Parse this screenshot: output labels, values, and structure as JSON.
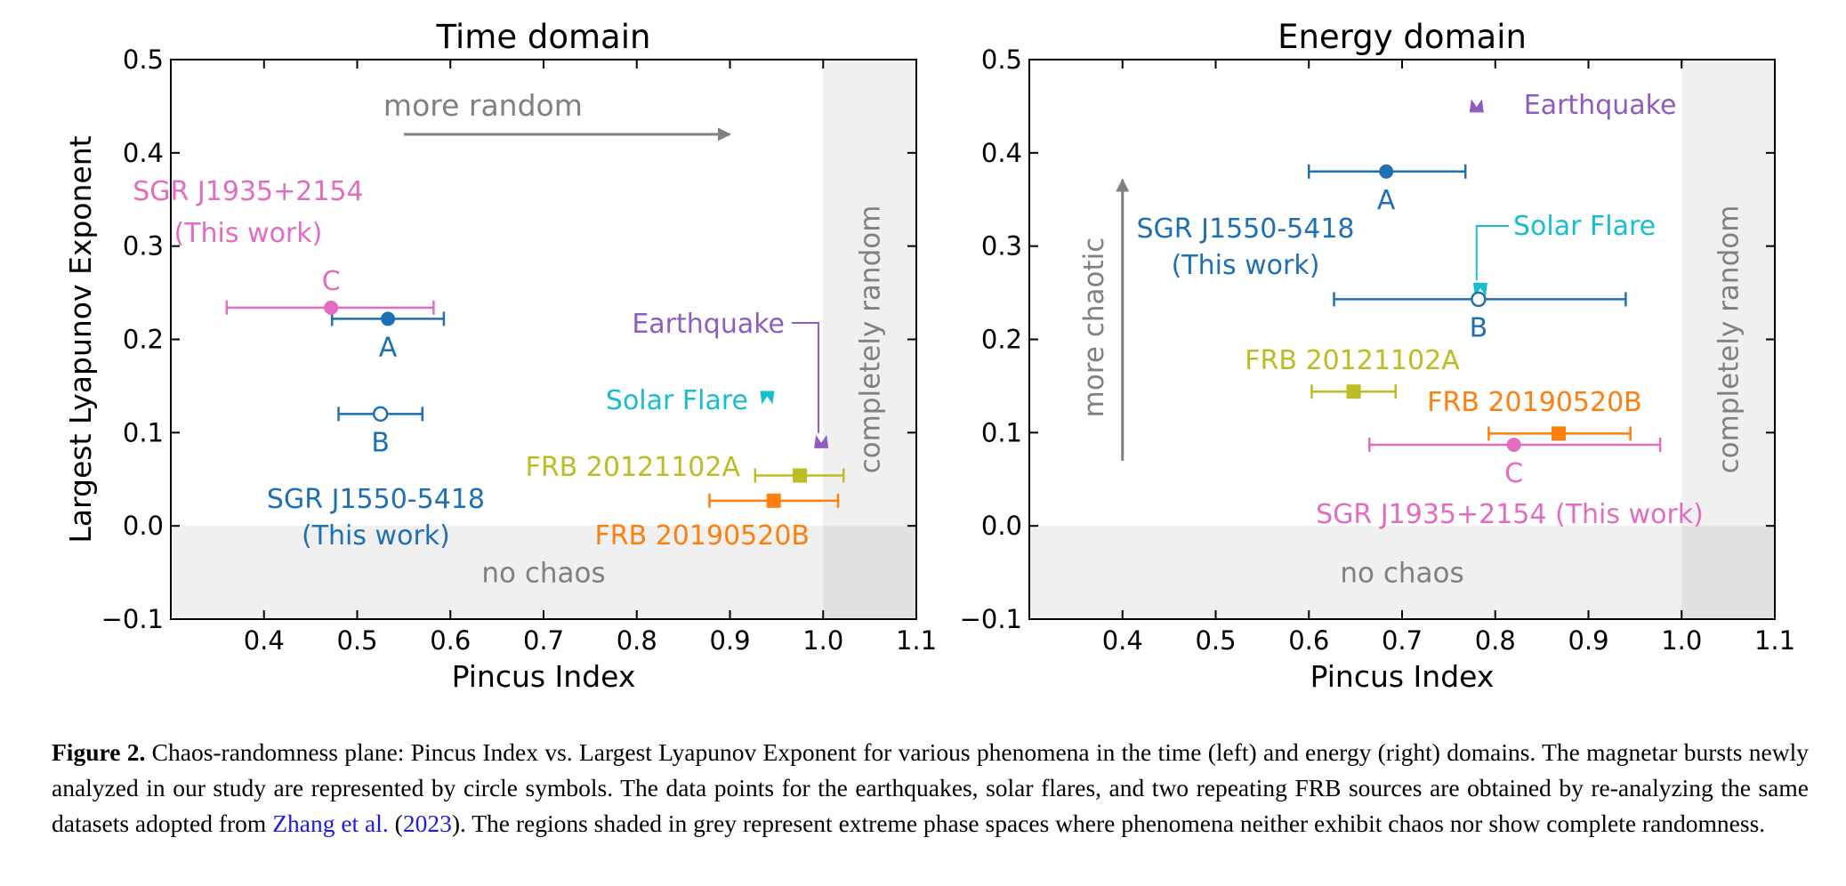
{
  "colors": {
    "sgr1550": "#1f6fb4",
    "sgr1935": "#e36cc1",
    "earthquake": "#8e5bc0",
    "solar": "#17becf",
    "frb121102": "#bcbd22",
    "frb190520": "#ff7f0e",
    "shade": "#f0f0f0",
    "shade_corner": "#e1e1e1",
    "annotation": "#808080"
  },
  "chart_data": [
    {
      "type": "scatter",
      "title": "Time domain",
      "xlabel": "Pincus Index",
      "ylabel": "Largest Lyapunov Exponent",
      "xlim": [
        0.3,
        1.1
      ],
      "ylim": [
        -0.1,
        0.5
      ],
      "xticks": [
        "0.4",
        "0.5",
        "0.6",
        "0.7",
        "0.8",
        "0.9",
        "1.0",
        "1.1"
      ],
      "yticks": [
        "−0.1",
        "0.0",
        "0.1",
        "0.2",
        "0.3",
        "0.4",
        "0.5"
      ],
      "regions": {
        "no_chaos": "no chaos",
        "random": "completely  random"
      },
      "arrow_label": "more random",
      "series": [
        {
          "key": "sgr1550",
          "marker": "circle",
          "x": 0.533,
          "y": 0.222,
          "xerr": [
            0.473,
            0.593
          ],
          "label": "A"
        },
        {
          "key": "sgr1550",
          "marker": "circle-open",
          "x": 0.525,
          "y": 0.12,
          "xerr": [
            0.48,
            0.57
          ],
          "label": "B"
        },
        {
          "key": "sgr1935",
          "marker": "circle",
          "x": 0.472,
          "y": 0.234,
          "xerr": [
            0.36,
            0.582
          ],
          "label": "C"
        },
        {
          "key": "solar",
          "marker": "triangle-down",
          "x": 0.94,
          "y": 0.138
        },
        {
          "key": "earthquake",
          "marker": "triangle-up",
          "x": 0.998,
          "y": 0.09
        },
        {
          "key": "frb121102",
          "marker": "square",
          "x": 0.975,
          "y": 0.054,
          "xerr": [
            0.927,
            1.022
          ]
        },
        {
          "key": "frb190520",
          "marker": "square",
          "x": 0.947,
          "y": 0.027,
          "xerr": [
            0.878,
            1.016
          ]
        }
      ],
      "labels": {
        "sgr1935_name": "SGR J1935+2154",
        "sgr1935_note": "(This work)",
        "sgr1550_name": "SGR J1550-5418",
        "sgr1550_note": "(This work)",
        "earthquake": "Earthquake",
        "solar": "Solar Flare",
        "frb121102": "FRB 20121102A",
        "frb190520": "FRB 20190520B"
      }
    },
    {
      "type": "scatter",
      "title": "Energy domain",
      "xlabel": "Pincus Index",
      "xlim": [
        0.3,
        1.1
      ],
      "ylim": [
        -0.1,
        0.5
      ],
      "xticks": [
        "0.4",
        "0.5",
        "0.6",
        "0.7",
        "0.8",
        "0.9",
        "1.0",
        "1.1"
      ],
      "yticks": [
        "−0.1",
        "0.0",
        "0.1",
        "0.2",
        "0.3",
        "0.4",
        "0.5"
      ],
      "regions": {
        "no_chaos": "no chaos",
        "random": "completely  random"
      },
      "arrow_label": "more chaotic",
      "series": [
        {
          "key": "earthquake",
          "marker": "triangle-up",
          "x": 0.78,
          "y": 0.45
        },
        {
          "key": "sgr1550",
          "marker": "circle",
          "x": 0.683,
          "y": 0.38,
          "xerr": [
            0.6,
            0.768
          ],
          "label": "A"
        },
        {
          "key": "solar",
          "marker": "triangle-down",
          "x": 0.784,
          "y": 0.254
        },
        {
          "key": "sgr1550",
          "marker": "circle-open",
          "x": 0.782,
          "y": 0.243,
          "xerr": [
            0.627,
            0.94
          ],
          "label": "B"
        },
        {
          "key": "frb121102",
          "marker": "square",
          "x": 0.648,
          "y": 0.144,
          "xerr": [
            0.603,
            0.693
          ]
        },
        {
          "key": "frb190520",
          "marker": "square",
          "x": 0.868,
          "y": 0.099,
          "xerr": [
            0.793,
            0.945
          ]
        },
        {
          "key": "sgr1935",
          "marker": "circle",
          "x": 0.82,
          "y": 0.087,
          "xerr": [
            0.665,
            0.977
          ],
          "label": "C"
        }
      ],
      "labels": {
        "earthquake": "Earthquake",
        "sgr1550_name": "SGR J1550-5418",
        "sgr1550_note": "(This work)",
        "solar": "Solar Flare",
        "frb121102": "FRB 20121102A",
        "frb190520": "FRB 20190520B",
        "sgr1935_full": "SGR J1935+2154 (This work)"
      }
    }
  ],
  "caption": {
    "label": "Figure 2.",
    "text1": " Chaos-randomness plane: Pincus Index vs. Largest Lyapunov Exponent for various phenomena in the time (left) and energy (right) domains. The magnetar bursts newly analyzed in our study are represented by circle symbols. The data points for the earthquakes, solar flares, and two repeating FRB sources are obtained by re-analyzing the same datasets adopted from ",
    "ref_author": "Zhang et al.",
    "ref_open": " (",
    "ref_year": "2023",
    "text2": "). The regions shaded in grey represent extreme phase spaces where phenomena neither exhibit chaos nor show complete randomness."
  }
}
